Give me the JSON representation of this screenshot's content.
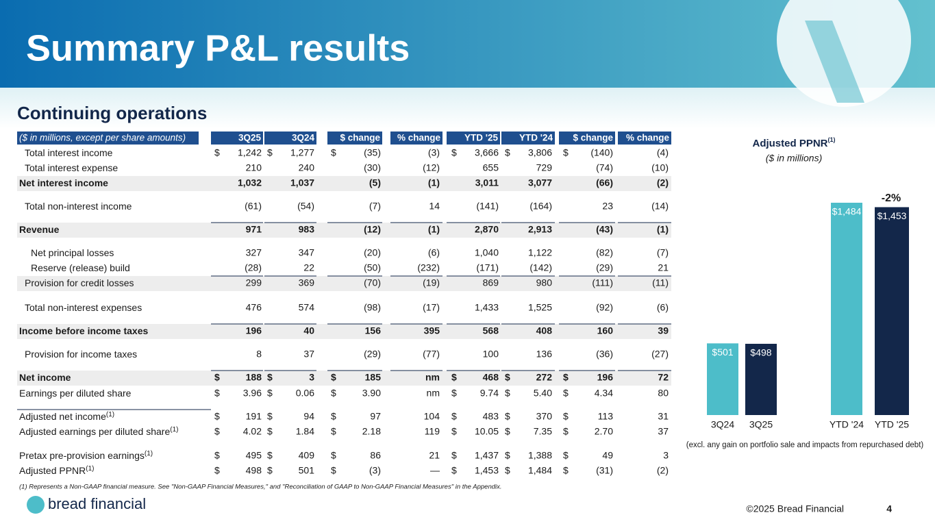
{
  "header": {
    "title": "Summary P&L results"
  },
  "section": "Continuing operations",
  "table": {
    "columns": [
      "($ in millions, except per share amounts)",
      "3Q25",
      "3Q24",
      "$ change",
      "% change",
      "YTD '25",
      "YTD '24",
      "$ change",
      "% change"
    ],
    "rows": [
      {
        "label": "Total interest income",
        "cells": [
          [
            "$",
            "1,242"
          ],
          [
            "$",
            "1,277"
          ],
          [
            "$",
            "(35)"
          ],
          "(3)",
          [
            "$",
            "3,666"
          ],
          [
            "$",
            "3,806"
          ],
          [
            "$",
            "(140)"
          ],
          "(4)"
        ]
      },
      {
        "label": "Total interest expense",
        "cells": [
          "210",
          "240",
          "(30)",
          "(12)",
          "655",
          "729",
          "(74)",
          "(10)"
        ]
      },
      {
        "label": "Net interest income",
        "cells": [
          "1,032",
          "1,037",
          "(5)",
          "(1)",
          "3,011",
          "3,077",
          "(66)",
          "(2)"
        ]
      },
      {
        "label": "Total non-interest income",
        "cells": [
          "(61)",
          "(54)",
          "(7)",
          "14",
          "(141)",
          "(164)",
          "23",
          "(14)"
        ]
      },
      {
        "label": "Revenue",
        "cells": [
          "971",
          "983",
          "(12)",
          "(1)",
          "2,870",
          "2,913",
          "(43)",
          "(1)"
        ]
      },
      {
        "label": "Net principal losses",
        "cells": [
          "327",
          "347",
          "(20)",
          "(6)",
          "1,040",
          "1,122",
          "(82)",
          "(7)"
        ]
      },
      {
        "label": "Reserve (release) build",
        "cells": [
          "(28)",
          "22",
          "(50)",
          "(232)",
          "(171)",
          "(142)",
          "(29)",
          "21"
        ]
      },
      {
        "label": "Provision for credit losses",
        "cells": [
          "299",
          "369",
          "(70)",
          "(19)",
          "869",
          "980",
          "(111)",
          "(11)"
        ]
      },
      {
        "label": "Total non-interest expenses",
        "cells": [
          "476",
          "574",
          "(98)",
          "(17)",
          "1,433",
          "1,525",
          "(92)",
          "(6)"
        ]
      },
      {
        "label": "Income before income taxes",
        "cells": [
          "196",
          "40",
          "156",
          "395",
          "568",
          "408",
          "160",
          "39"
        ]
      },
      {
        "label": "Provision for income taxes",
        "cells": [
          "8",
          "37",
          "(29)",
          "(77)",
          "100",
          "136",
          "(36)",
          "(27)"
        ]
      },
      {
        "label": "Net income",
        "cells": [
          [
            "$",
            "188"
          ],
          [
            "$",
            "3"
          ],
          [
            "$",
            "185"
          ],
          "nm",
          [
            "$",
            "468"
          ],
          [
            "$",
            "272"
          ],
          [
            "$",
            "196"
          ],
          "72"
        ]
      },
      {
        "label": "Earnings per diluted share",
        "cells": [
          [
            "$",
            "3.96"
          ],
          [
            "$",
            "0.06"
          ],
          [
            "$",
            "3.90"
          ],
          "nm",
          [
            "$",
            "9.74"
          ],
          [
            "$",
            "5.40"
          ],
          [
            "$",
            "4.34"
          ],
          "80"
        ]
      },
      {
        "label": "Adjusted net income",
        "note": "(1)",
        "cells": [
          [
            "$",
            "191"
          ],
          [
            "$",
            "94"
          ],
          [
            "$",
            "97"
          ],
          "104",
          [
            "$",
            "483"
          ],
          [
            "$",
            "370"
          ],
          [
            "$",
            "113"
          ],
          "31"
        ]
      },
      {
        "label": "Adjusted earnings per diluted share",
        "note": "(1)",
        "cells": [
          [
            "$",
            "4.02"
          ],
          [
            "$",
            "1.84"
          ],
          [
            "$",
            "2.18"
          ],
          "119",
          [
            "$",
            "10.05"
          ],
          [
            "$",
            "7.35"
          ],
          [
            "$",
            "2.70"
          ],
          "37"
        ]
      },
      {
        "label": "Pretax pre-provision earnings",
        "note": "(1)",
        "cells": [
          [
            "$",
            "495"
          ],
          [
            "$",
            "409"
          ],
          [
            "$",
            "86"
          ],
          "21",
          [
            "$",
            "1,437"
          ],
          [
            "$",
            "1,388"
          ],
          [
            "$",
            "49"
          ],
          "3"
        ]
      },
      {
        "label": "Adjusted PPNR",
        "note": "(1)",
        "cells": [
          [
            "$",
            "498"
          ],
          [
            "$",
            "501"
          ],
          [
            "$",
            "(3)"
          ],
          "—",
          [
            "$",
            "1,453"
          ],
          [
            "$",
            "1,484"
          ],
          [
            "$",
            "(31)"
          ],
          "(2)"
        ]
      }
    ],
    "footnote": "(1)  Represents a Non-GAAP financial measure.  See \"Non-GAAP Financial Measures,\" and \"Reconciliation of GAAP to Non-GAAP Financial Measures\" in the Appendix."
  },
  "chart_data": {
    "type": "bar",
    "title": "Adjusted PPNR",
    "title_note": "(1)",
    "subtitle": "($ in millions)",
    "categories": [
      "3Q24",
      "3Q25",
      "YTD '24",
      "YTD '25"
    ],
    "values": [
      501,
      498,
      1484,
      1453
    ],
    "value_labels": [
      "$501",
      "$498",
      "$1,484",
      "$1,453"
    ],
    "colors": [
      "#4dbdc9",
      "#13274a",
      "#4dbdc9",
      "#13274a"
    ],
    "annotation": "-2%",
    "note": "(excl. any gain on portfolio sale and impacts from repurchased debt)"
  },
  "footer": {
    "logo": "bread financial",
    "copyright": "©2025 Bread Financial",
    "page": "4"
  }
}
